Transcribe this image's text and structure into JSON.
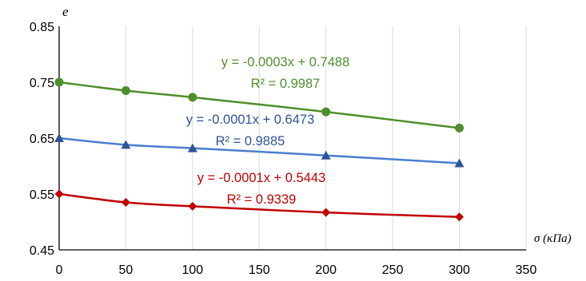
{
  "chart_data": {
    "type": "scatter",
    "xlabel": "σ (κΠa)",
    "ylabel": "e",
    "xlim": [
      0,
      350
    ],
    "ylim": [
      0.45,
      0.85
    ],
    "xticks": [
      0,
      50,
      100,
      150,
      200,
      250,
      300,
      350
    ],
    "yticks": [
      0.45,
      0.55,
      0.65,
      0.75,
      0.85
    ],
    "ytick_labels": [
      "0.45",
      "0.55",
      "0.65",
      "0.75",
      "0.85"
    ],
    "grid": "vertical",
    "legend": "none",
    "series": [
      {
        "color": "#4e8f2c",
        "marker": "circle",
        "x": [
          0,
          50,
          100,
          200,
          300
        ],
        "y": [
          0.75,
          0.735,
          0.723,
          0.697,
          0.668
        ],
        "equation": "y = -0.0003x + 0.7488",
        "r2": "R² = 0.9987"
      },
      {
        "color": "#2f5597",
        "line_color": "#4a7dcf",
        "marker": "triangle",
        "x": [
          0,
          50,
          100,
          200,
          300
        ],
        "y": [
          0.65,
          0.638,
          0.632,
          0.619,
          0.605
        ],
        "equation": "y = -0.0001x + 0.6473",
        "r2": "R² = 0.9885"
      },
      {
        "color": "#c00000",
        "marker": "diamond",
        "x": [
          0,
          50,
          100,
          200,
          300
        ],
        "y": [
          0.55,
          0.535,
          0.528,
          0.517,
          0.509
        ],
        "equation": "y = -0.0001x + 0.5443",
        "r2": "R² = 0.9339"
      }
    ]
  }
}
